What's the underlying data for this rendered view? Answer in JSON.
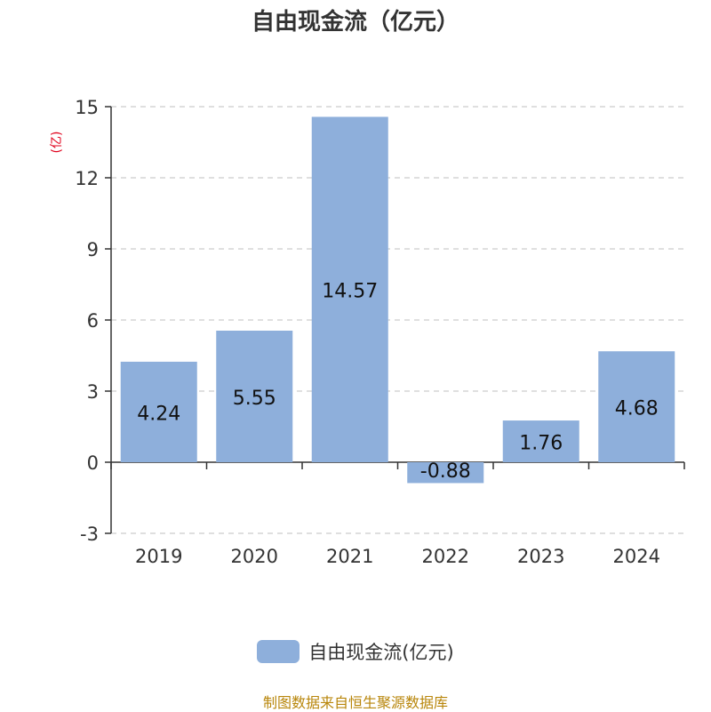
{
  "chart_data": {
    "type": "bar",
    "title": "自由现金流（亿元）",
    "ylabel": "(亿)",
    "categories": [
      "2019",
      "2020",
      "2021",
      "2022",
      "2023",
      "2024"
    ],
    "series": [
      {
        "name": "自由现金流(亿元)",
        "values": [
          4.24,
          5.55,
          14.57,
          -0.88,
          1.76,
          4.68
        ],
        "labels": [
          "4.24",
          "5.55",
          "14.57",
          "-0.88",
          "1.76",
          "4.68"
        ]
      }
    ],
    "ylim": [
      -3,
      15
    ],
    "yticks": [
      "-3",
      "0",
      "3",
      "6",
      "9",
      "12",
      "15"
    ],
    "grid": true,
    "legend_position": "bottom",
    "bar_color": "#8eafdb",
    "ylabel_color": "#e0001b"
  },
  "footer": "制图数据来自恒生聚源数据库"
}
